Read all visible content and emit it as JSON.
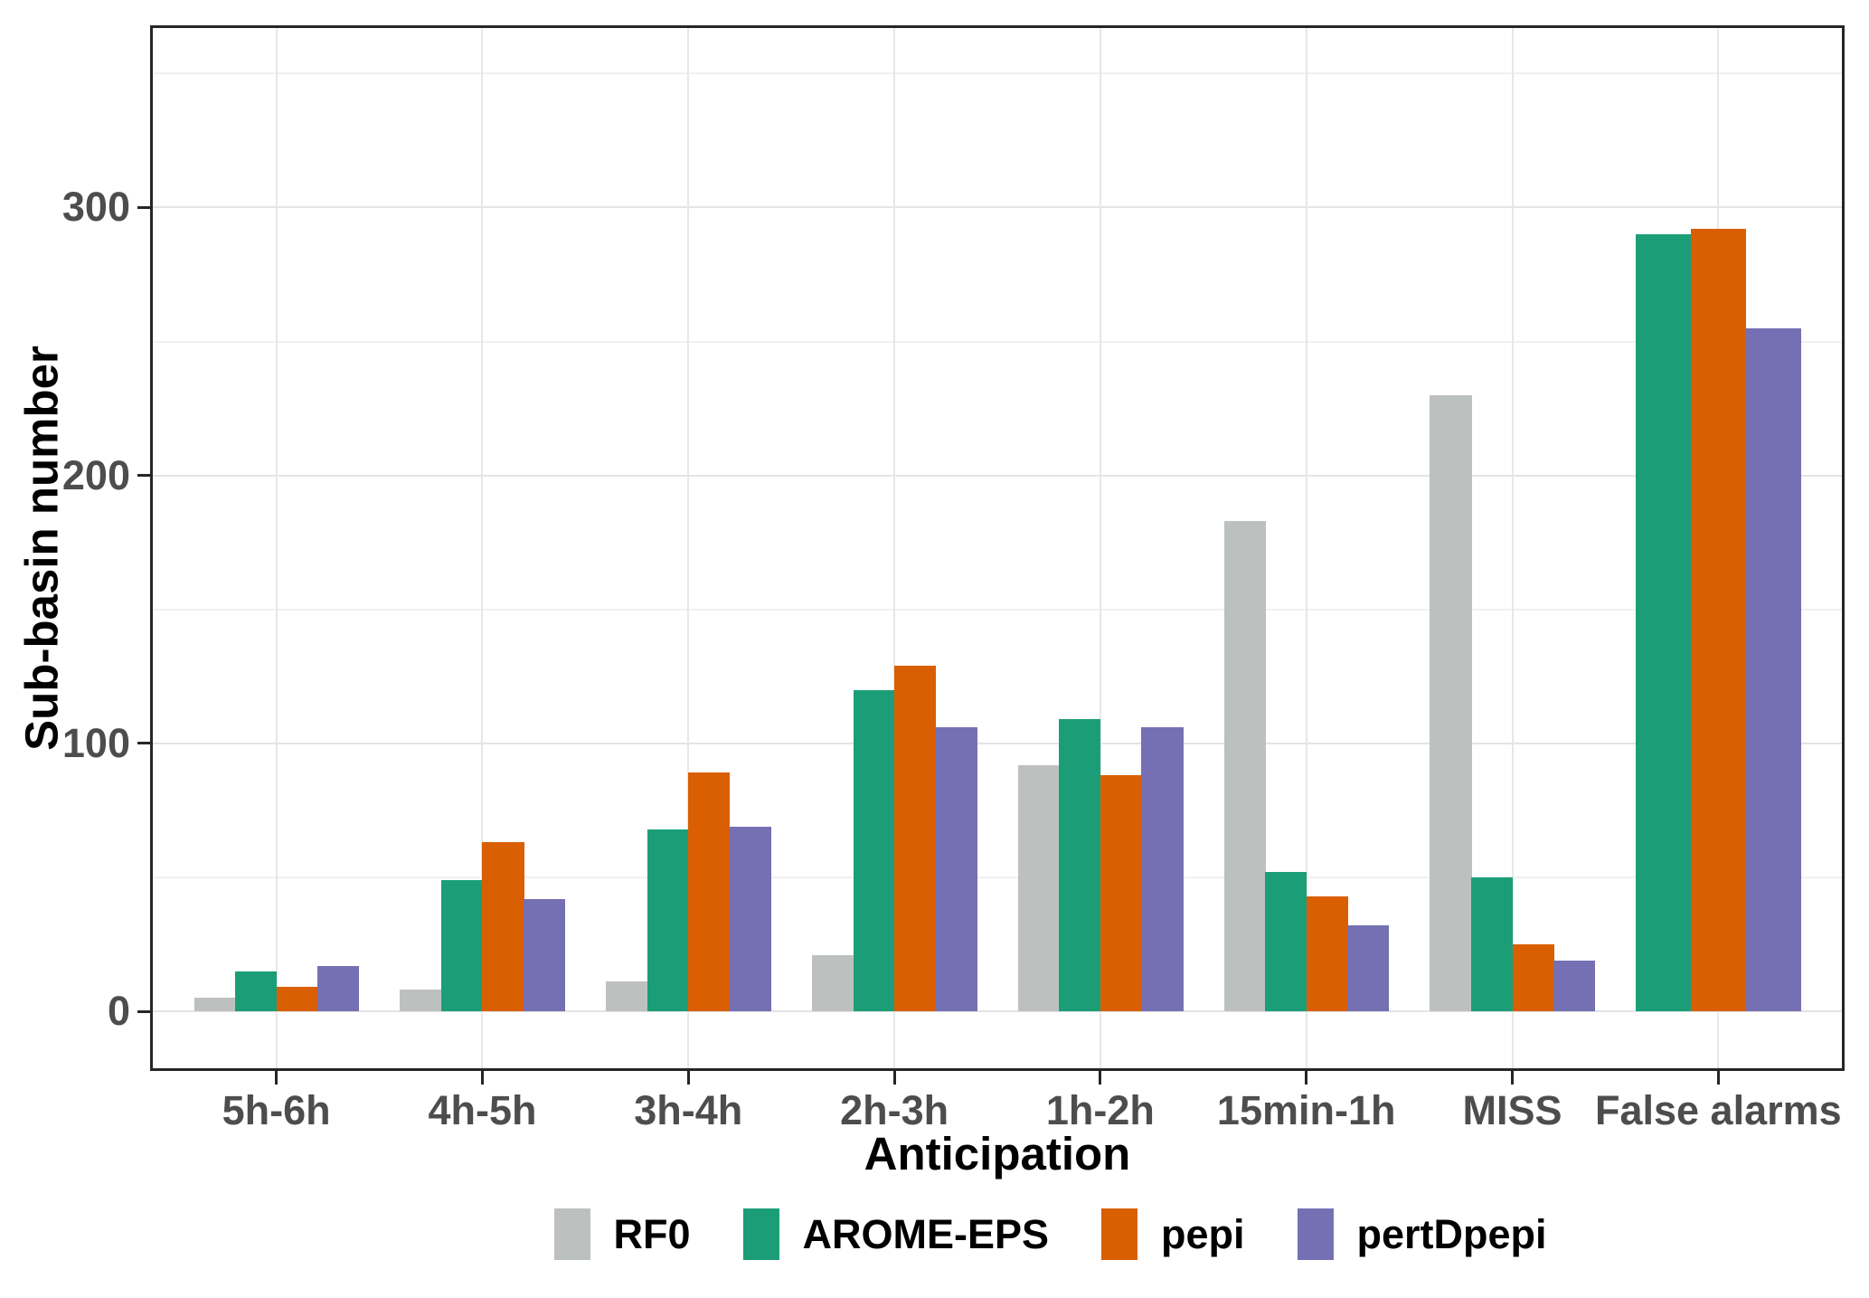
{
  "chart_data": {
    "type": "bar",
    "title": "",
    "xlabel": "Anticipation",
    "ylabel": "Sub-basin number",
    "categories": [
      "5h-6h",
      "4h-5h",
      "3h-4h",
      "2h-3h",
      "1h-2h",
      "15min-1h",
      "MISS",
      "False alarms"
    ],
    "series": [
      {
        "name": "RF0",
        "color": "#bcc1bf",
        "values": [
          5,
          8,
          11,
          21,
          92,
          183,
          230,
          null
        ]
      },
      {
        "name": "AROME-EPS",
        "color": "#1b9e77",
        "values": [
          15,
          49,
          68,
          120,
          109,
          52,
          50,
          290
        ]
      },
      {
        "name": "pepi",
        "color": "#d95f02",
        "values": [
          9,
          63,
          89,
          129,
          88,
          43,
          25,
          292
        ]
      },
      {
        "name": "pertDpepi",
        "color": "#7570b3",
        "values": [
          17,
          42,
          69,
          106,
          106,
          32,
          19,
          255
        ]
      }
    ],
    "ylim": [
      0,
      367
    ],
    "y_ticks": [
      0,
      100,
      200,
      300
    ],
    "y_minor_ticks": [
      50,
      150,
      250,
      350
    ],
    "grid": true,
    "legend_position": "bottom",
    "axis_text_color": "#4d4d4d",
    "panel_border_color": "#262626"
  }
}
